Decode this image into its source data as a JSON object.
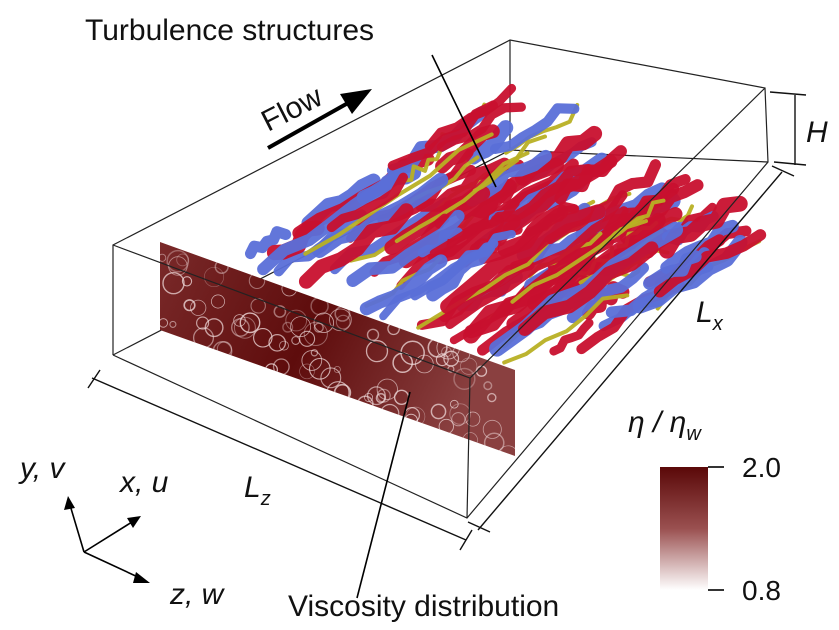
{
  "labels": {
    "turbulence": "Turbulence structures",
    "flow": "Flow",
    "height": {
      "main": "H"
    },
    "length_x": {
      "main": "L",
      "sub": "x"
    },
    "length_z": {
      "main": "L",
      "sub": "z"
    },
    "axis_y": "y, v",
    "axis_x": "x, u",
    "axis_z": "z, w",
    "viscosity": "Viscosity distribution"
  },
  "colorbar": {
    "title": {
      "main": "η / η",
      "sub": "w"
    },
    "ticks": [
      {
        "value": 2.0,
        "label": "2.0"
      },
      {
        "value": 0.8,
        "label": "0.8"
      }
    ]
  }
}
